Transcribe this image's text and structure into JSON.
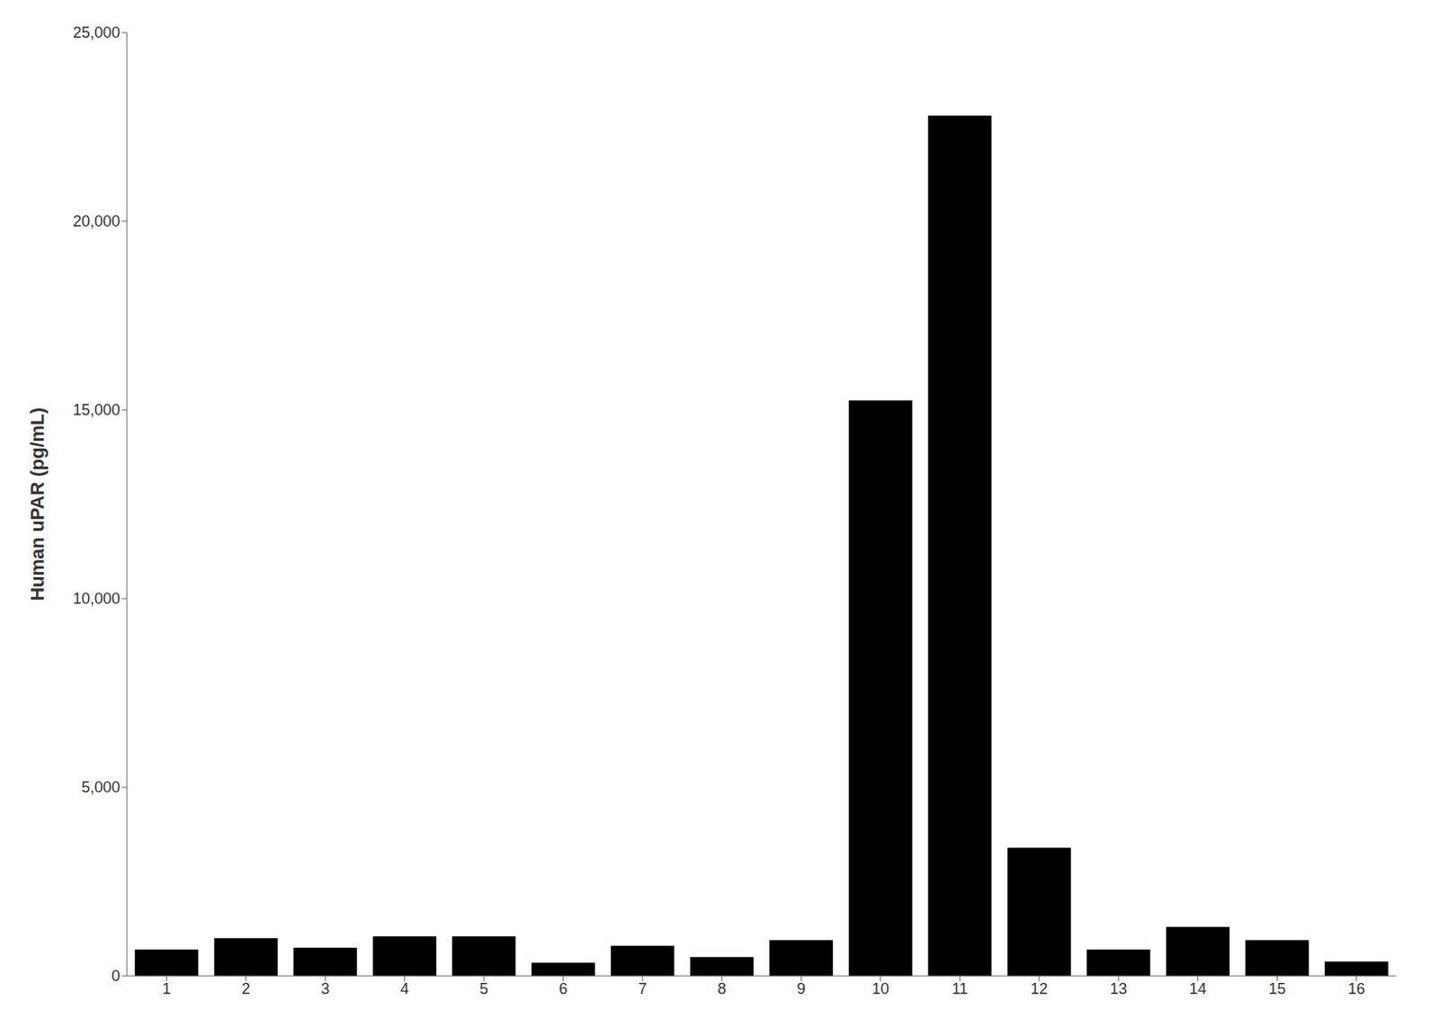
{
  "chart_data": {
    "type": "bar",
    "ylabel": "Human uPAR (pg/mL)",
    "categories": [
      "1",
      "2",
      "3",
      "4",
      "5",
      "6",
      "7",
      "8",
      "9",
      "10",
      "11",
      "12",
      "13",
      "14",
      "15",
      "16"
    ],
    "values": [
      700,
      1000,
      750,
      1050,
      1050,
      351.4,
      800,
      500,
      950,
      15250,
      22799.0,
      3400,
      700,
      1300,
      950,
      380
    ],
    "color": "#000000",
    "ylim": [
      0,
      25000
    ],
    "yticks": [
      0,
      {
        "value": 5000,
        "label": "5,000"
      },
      {
        "value": 10000,
        "label": "10,000"
      },
      {
        "value": 15000,
        "label": "15,000"
      },
      {
        "value": 20000,
        "label": "20,000"
      },
      {
        "value": 25000,
        "label": "25,000"
      }
    ],
    "grid": false
  }
}
